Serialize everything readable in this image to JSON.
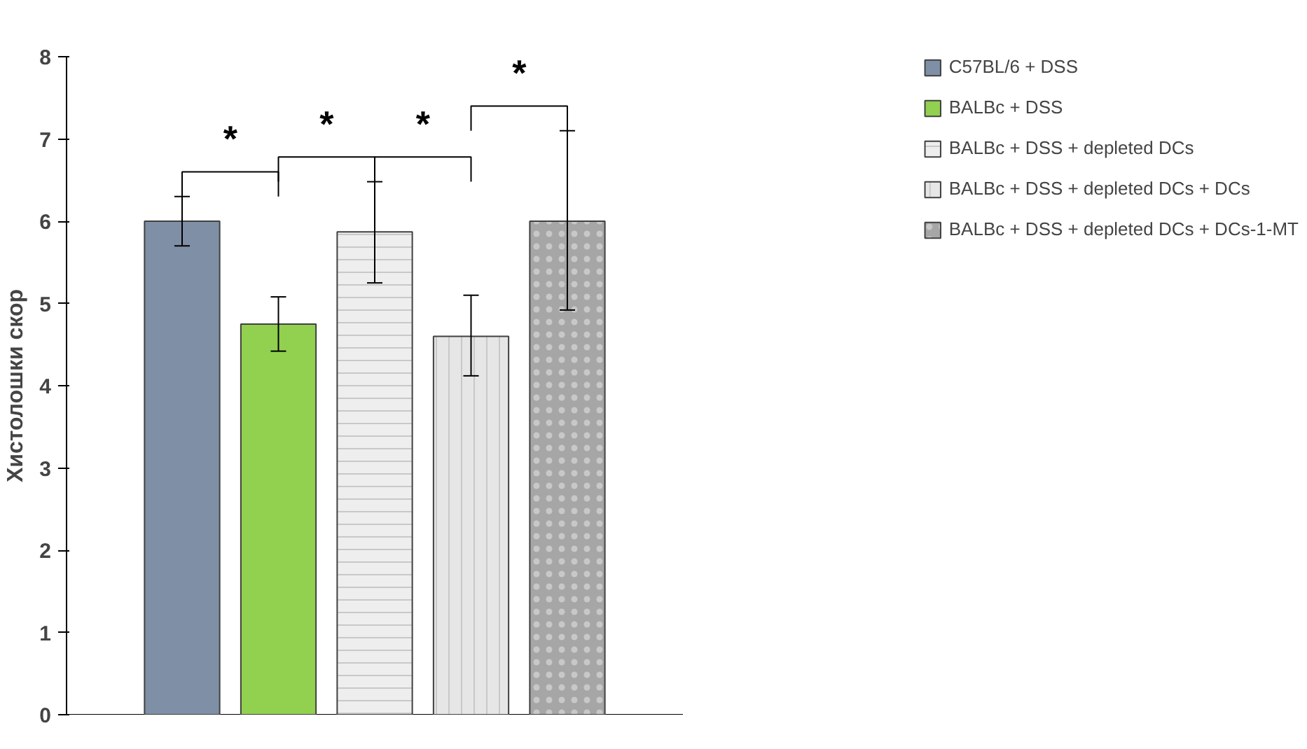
{
  "chart_data": {
    "type": "bar",
    "ylabel": "Хистолошки скор",
    "categories": [
      null,
      null,
      null,
      null,
      null
    ],
    "series": [
      {
        "name": "C57BL/6 + DSS",
        "color": "#7f8fa6",
        "values": [
          6.0,
          null,
          null,
          null,
          null
        ],
        "errors": [
          0.3,
          null,
          null,
          null,
          null
        ]
      },
      {
        "name": "BALBc + DSS",
        "color": "#92d050",
        "values": [
          null,
          4.75,
          null,
          null,
          null
        ],
        "errors": [
          null,
          [
            4.42,
            5.08
          ],
          null,
          null,
          null
        ]
      },
      {
        "name": "BALBc + DSS + depleted DCs",
        "color": "#eeeeee",
        "values": [
          null,
          null,
          5.87,
          null,
          null
        ],
        "errors": [
          null,
          null,
          [
            5.25,
            6.48
          ],
          null,
          null
        ]
      },
      {
        "name": "BALBc + DSS + depleted DCs + DCs",
        "color": "#e6e6e6",
        "values": [
          null,
          null,
          null,
          4.6,
          null
        ],
        "errors": [
          null,
          null,
          null,
          [
            4.12,
            5.1
          ],
          null
        ]
      },
      {
        "name": "BALBc + DSS + depleted DCs + DCs-1-MT",
        "color": "#a6a6a6",
        "values": [
          null,
          null,
          null,
          null,
          6.0
        ],
        "errors": [
          null,
          null,
          null,
          null,
          [
            4.92,
            7.1
          ]
        ]
      }
    ],
    "ylim": [
      0,
      8
    ],
    "yticks": [
      0,
      1,
      2,
      3,
      4,
      5,
      6,
      7,
      8
    ],
    "grid": false,
    "legend": "top right",
    "tick_labels": "y",
    "annotations": [
      "*",
      "*",
      "*",
      "*"
    ]
  }
}
